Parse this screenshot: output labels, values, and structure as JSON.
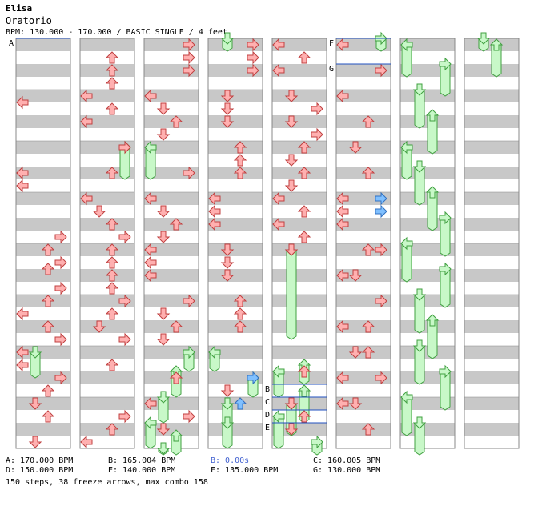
{
  "song": {
    "title": "Elisa",
    "artist": "Oratorio",
    "bpm_line": "BPM: 130.000 - 170.000 / BASIC SINGLE / 4 feet"
  },
  "legend": [
    {
      "text": "A: 170.000 BPM",
      "color": "#404040"
    },
    {
      "text": "B: 165.004 BPM",
      "color": "#404040"
    },
    {
      "text": "B: 0.00s",
      "color": "#4060d0"
    },
    {
      "text": "C: 160.005 BPM",
      "color": "#404040"
    },
    {
      "text": "D: 150.000 BPM",
      "color": "#404040"
    },
    {
      "text": "E: 140.000 BPM",
      "color": "#404040"
    },
    {
      "text": "F: 135.000 BPM",
      "color": "#404040"
    },
    {
      "text": "G: 130.000 BPM",
      "color": "#404040"
    }
  ],
  "summary": "150 steps, 38 freeze arrows, max combo 158",
  "markers": [
    {
      "label": "A",
      "col": 0,
      "beat": 0
    },
    {
      "label": "F",
      "col": 5,
      "beat": 0
    },
    {
      "label": "G",
      "col": 5,
      "beat": 2
    },
    {
      "label": "B",
      "col": 4,
      "beat": 27
    },
    {
      "label": "C",
      "col": 4,
      "beat": 28
    },
    {
      "label": "D",
      "col": 4,
      "beat": 29
    },
    {
      "label": "E",
      "col": 4,
      "beat": 30
    }
  ],
  "colors": {
    "note": "#ffb0b0",
    "note_stroke": "#c04040",
    "blue": "#80c0ff",
    "blue_stroke": "#3070c0",
    "freeze": "#c8f8c8",
    "freeze_stroke": "#40a040",
    "stripe": "#c8c8c8",
    "line": "#2050c0"
  },
  "notes": [
    [
      [
        0,
        0,
        5
      ],
      [
        0,
        1,
        10.5
      ],
      [
        0,
        2,
        10.5
      ],
      [
        0,
        3,
        11.5
      ],
      [
        3,
        1,
        15.5
      ],
      [
        2,
        1,
        16.5
      ],
      [
        3,
        1,
        17.5
      ],
      [
        2,
        1,
        18
      ],
      [
        3,
        1,
        19.5
      ],
      [
        2,
        1,
        20.5
      ],
      [
        0,
        1,
        21.5
      ],
      [
        2,
        1,
        22.5
      ],
      [
        3,
        1,
        23.5
      ],
      [
        0,
        1,
        24.5
      ],
      [
        0,
        1,
        25.5
      ],
      [
        3,
        1,
        26.5
      ],
      [
        2,
        1,
        27.5
      ],
      [
        1,
        1,
        28.5
      ],
      [
        2,
        1,
        29.5
      ],
      [
        1,
        1,
        31.5
      ]
    ],
    [
      [
        2,
        1,
        1.5
      ],
      [
        2,
        1,
        2.5
      ],
      [
        2,
        1,
        3.5
      ],
      [
        0,
        1,
        4.5
      ],
      [
        2,
        1,
        5.5
      ],
      [
        0,
        1,
        6.5
      ],
      [
        3,
        1,
        8.5
      ],
      [
        2,
        1,
        10.5
      ],
      [
        0,
        1,
        12.5
      ],
      [
        1,
        1,
        13.5
      ],
      [
        2,
        1,
        14.5
      ],
      [
        3,
        1,
        15.5
      ],
      [
        2,
        1,
        16.5
      ],
      [
        2,
        1,
        17.5
      ],
      [
        2,
        1,
        18.5
      ],
      [
        2,
        1,
        19.5
      ],
      [
        3,
        1,
        20.5
      ],
      [
        2,
        1,
        21.5
      ],
      [
        1,
        1,
        22.5
      ],
      [
        3,
        1,
        23.5
      ],
      [
        2,
        1,
        25.5
      ],
      [
        3,
        1,
        29.5
      ],
      [
        2,
        1,
        30.5
      ],
      [
        0,
        1,
        31.5
      ]
    ],
    [
      [
        3,
        1,
        0.5
      ],
      [
        3,
        1,
        1.5
      ],
      [
        3,
        1,
        2.5
      ],
      [
        0,
        1,
        4.5
      ],
      [
        1,
        1,
        5.5
      ],
      [
        2,
        1,
        6.5
      ],
      [
        1,
        1,
        7.5
      ],
      [
        3,
        1,
        10.5
      ],
      [
        0,
        1,
        12.5
      ],
      [
        1,
        1,
        13.5
      ],
      [
        2,
        1,
        14.5
      ],
      [
        1,
        1,
        15.5
      ],
      [
        0,
        1,
        16.5
      ],
      [
        0,
        1,
        17.5
      ],
      [
        0,
        1,
        18.5
      ],
      [
        3,
        1,
        20.5
      ],
      [
        1,
        1,
        21.5
      ],
      [
        2,
        1,
        22.5
      ],
      [
        1,
        1,
        23.5
      ],
      [
        2,
        1,
        26.5
      ],
      [
        0,
        1,
        28.5
      ],
      [
        3,
        1,
        29.5
      ],
      [
        1,
        1,
        30.5
      ]
    ],
    [
      [
        3,
        1,
        1.5
      ],
      [
        3,
        1,
        2.5
      ],
      [
        3,
        1,
        0.5
      ],
      [
        1,
        1,
        4.5
      ],
      [
        1,
        1,
        5.5
      ],
      [
        1,
        1,
        6.5
      ],
      [
        2,
        1,
        8.5
      ],
      [
        2,
        1,
        9.5
      ],
      [
        2,
        1,
        10.5
      ],
      [
        0,
        1,
        12.5
      ],
      [
        0,
        1,
        13.5
      ],
      [
        0,
        1,
        14.5
      ],
      [
        1,
        1,
        16.5
      ],
      [
        1,
        1,
        17.5
      ],
      [
        1,
        1,
        18.5
      ],
      [
        2,
        1,
        20.5
      ],
      [
        2,
        1,
        21.5
      ],
      [
        2,
        1,
        22.5
      ],
      [
        1,
        1,
        27.5
      ],
      [
        2,
        1,
        28.5
      ]
    ],
    [
      [
        0,
        1,
        0.5
      ],
      [
        2,
        1,
        1.5
      ],
      [
        0,
        1,
        2.5
      ],
      [
        1,
        1,
        4.5
      ],
      [
        3,
        1,
        5.5
      ],
      [
        1,
        1,
        6.5
      ],
      [
        3,
        1,
        7.5
      ],
      [
        2,
        1,
        8.5
      ],
      [
        1,
        1,
        9.5
      ],
      [
        2,
        1,
        10.5
      ],
      [
        1,
        1,
        11.5
      ],
      [
        0,
        1,
        12.5
      ],
      [
        2,
        1,
        13.5
      ],
      [
        0,
        1,
        14.5
      ],
      [
        2,
        1,
        15.5
      ],
      [
        1,
        1,
        16.5
      ],
      [
        2,
        1,
        26
      ],
      [
        1,
        1,
        28.5
      ],
      [
        2,
        1,
        29.5
      ],
      [
        1,
        1,
        30.5
      ]
    ],
    [
      [
        0,
        1,
        0.5
      ],
      [
        3,
        1,
        2.5
      ],
      [
        0,
        1,
        4.5
      ],
      [
        2,
        1,
        6.5
      ],
      [
        1,
        1,
        8.5
      ],
      [
        2,
        1,
        10.5
      ],
      [
        0,
        1,
        12.5
      ],
      [
        0,
        1,
        13.5
      ],
      [
        0,
        1,
        14.5
      ],
      [
        2,
        1,
        16.5
      ],
      [
        3,
        1,
        16.5
      ],
      [
        0,
        1,
        18.5
      ],
      [
        1,
        1,
        18.5
      ],
      [
        3,
        1,
        20.5
      ],
      [
        0,
        1,
        22.5
      ],
      [
        2,
        1,
        22.5
      ],
      [
        1,
        1,
        24.5
      ],
      [
        2,
        1,
        24.5
      ],
      [
        0,
        1,
        26.5
      ],
      [
        3,
        1,
        26.5
      ],
      [
        0,
        1,
        28.5
      ],
      [
        1,
        1,
        28.5
      ],
      [
        2,
        1,
        30.5
      ]
    ],
    [],
    []
  ],
  "blues": [
    [
      3,
      3,
      26.5
    ],
    [
      2,
      3,
      28.5
    ],
    [
      3,
      5,
      12.5
    ],
    [
      3,
      5,
      13.5
    ]
  ],
  "freezes": [
    [
      [
        1,
        0,
        24.5,
        26.5
      ]
    ],
    [
      [
        3,
        1,
        8.5,
        11
      ],
      [
        2,
        1,
        0,
        0
      ]
    ],
    [
      [
        0,
        2,
        8.5,
        11
      ],
      [
        3,
        2,
        24.5,
        26
      ],
      [
        2,
        2,
        26,
        28
      ],
      [
        1,
        2,
        28,
        30
      ],
      [
        0,
        2,
        30,
        32
      ],
      [
        2,
        2,
        31,
        33
      ],
      [
        1,
        2,
        32,
        34
      ]
    ],
    [
      [
        1,
        3,
        0,
        1
      ],
      [
        0,
        3,
        24.5,
        26
      ],
      [
        3,
        3,
        26.5,
        28
      ],
      [
        1,
        3,
        28.5,
        31
      ],
      [
        1,
        3,
        30,
        32
      ]
    ],
    [
      [
        1,
        4,
        16.5,
        23.5
      ],
      [
        0,
        4,
        26,
        28
      ],
      [
        2,
        4,
        25.5,
        27
      ],
      [
        2,
        4,
        27.5,
        30
      ],
      [
        1,
        4,
        28.5,
        31
      ],
      [
        0,
        4,
        29.5,
        32
      ],
      [
        3,
        4,
        31.5,
        34
      ]
    ],
    [
      [
        3,
        5,
        0,
        1
      ]
    ],
    [
      [
        0,
        6,
        0.5,
        3
      ],
      [
        3,
        6,
        2,
        4.5
      ],
      [
        1,
        6,
        4,
        7
      ],
      [
        2,
        6,
        6,
        9
      ],
      [
        0,
        6,
        8.5,
        11
      ],
      [
        1,
        6,
        10,
        13
      ],
      [
        2,
        6,
        12,
        15
      ],
      [
        3,
        6,
        14,
        17
      ],
      [
        0,
        6,
        16,
        19
      ],
      [
        3,
        6,
        18,
        21
      ],
      [
        1,
        6,
        20,
        23
      ],
      [
        2,
        6,
        22,
        25
      ],
      [
        1,
        6,
        24,
        27
      ],
      [
        3,
        6,
        26,
        29
      ],
      [
        0,
        6,
        28,
        31
      ],
      [
        1,
        6,
        30,
        34
      ]
    ],
    [
      [
        1,
        7,
        0,
        1
      ],
      [
        2,
        7,
        0.5,
        3
      ]
    ]
  ]
}
